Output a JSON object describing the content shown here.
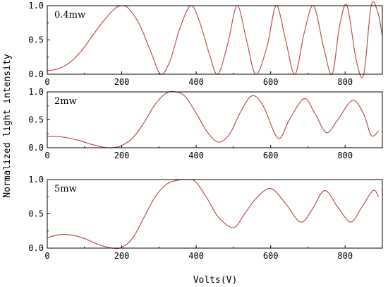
{
  "chart_data": {
    "type": "line",
    "xlabel": "Volts(V)",
    "ylabel": "Normalized light intensity",
    "line_color": "#c0504d",
    "panels": [
      {
        "label": "0.4mw",
        "xlim": [
          0,
          900
        ],
        "ylim": [
          0,
          1
        ],
        "x_ticks": [
          0,
          200,
          400,
          600,
          800
        ],
        "y_ticks": [
          "0.0",
          "0.5",
          "1.0"
        ],
        "x": [
          0,
          30,
          60,
          90,
          120,
          150,
          180,
          200,
          220,
          250,
          280,
          305,
          330,
          355,
          385,
          410,
          435,
          458,
          485,
          510,
          535,
          560,
          590,
          615,
          640,
          665,
          690,
          715,
          742,
          765,
          785,
          805,
          830,
          850,
          870,
          888,
          900
        ],
        "y": [
          0.05,
          0.08,
          0.17,
          0.33,
          0.55,
          0.77,
          0.95,
          1.0,
          0.95,
          0.7,
          0.3,
          0.0,
          0.2,
          0.65,
          1.0,
          0.75,
          0.3,
          0.0,
          0.45,
          1.0,
          0.5,
          0.0,
          0.4,
          1.0,
          0.5,
          0.0,
          0.6,
          1.0,
          0.4,
          0.0,
          0.7,
          1.0,
          0.2,
          0.0,
          1.0,
          0.9,
          0.55
        ]
      },
      {
        "label": "2mw",
        "xlim": [
          0,
          900
        ],
        "ylim": [
          0,
          1
        ],
        "x_ticks": [
          0,
          200,
          400,
          600,
          800
        ],
        "y_ticks": [
          "0.0",
          "0.5",
          "1.0"
        ],
        "x": [
          0,
          30,
          60,
          90,
          120,
          150,
          175,
          200,
          230,
          260,
          290,
          320,
          345,
          370,
          400,
          430,
          460,
          490,
          520,
          550,
          580,
          620,
          650,
          690,
          720,
          750,
          780,
          820,
          850,
          870,
          890
        ],
        "y": [
          0.2,
          0.2,
          0.17,
          0.12,
          0.06,
          0.01,
          0.0,
          0.04,
          0.18,
          0.45,
          0.78,
          0.98,
          1.0,
          0.92,
          0.62,
          0.28,
          0.1,
          0.25,
          0.65,
          0.93,
          0.75,
          0.17,
          0.5,
          0.88,
          0.6,
          0.27,
          0.5,
          0.85,
          0.6,
          0.22,
          0.3
        ]
      },
      {
        "label": "5mw",
        "xlim": [
          0,
          900
        ],
        "ylim": [
          0,
          1
        ],
        "x_ticks": [
          0,
          200,
          400,
          600,
          800
        ],
        "y_ticks": [
          "0.0",
          "0.5",
          "1.0"
        ],
        "x": [
          0,
          25,
          50,
          75,
          100,
          125,
          150,
          175,
          200,
          230,
          260,
          290,
          320,
          350,
          380,
          400,
          430,
          460,
          500,
          530,
          560,
          600,
          640,
          680,
          710,
          745,
          780,
          815,
          845,
          875,
          890
        ],
        "y": [
          0.15,
          0.19,
          0.2,
          0.18,
          0.14,
          0.08,
          0.03,
          0.0,
          0.01,
          0.15,
          0.45,
          0.75,
          0.93,
          0.99,
          1.0,
          0.96,
          0.72,
          0.45,
          0.3,
          0.5,
          0.72,
          0.87,
          0.65,
          0.38,
          0.55,
          0.84,
          0.6,
          0.38,
          0.6,
          0.84,
          0.75
        ]
      }
    ]
  }
}
